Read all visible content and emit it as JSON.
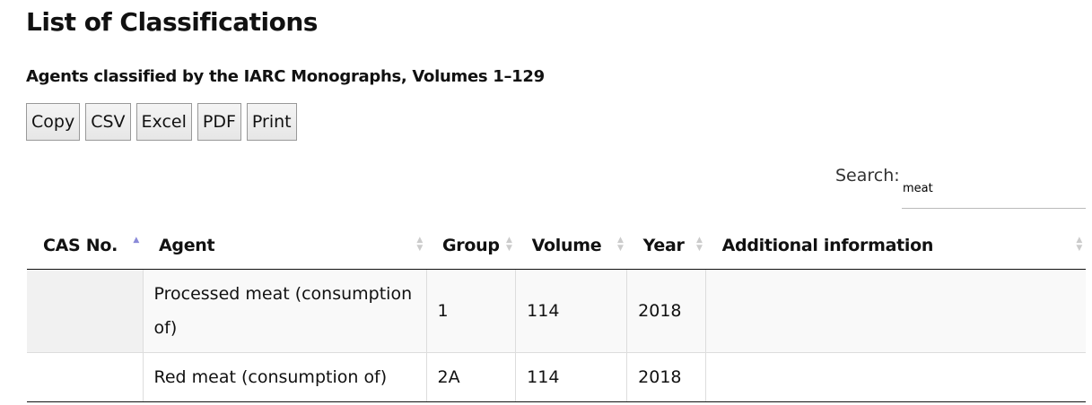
{
  "title": "List of Classifications",
  "subtitle": "Agents classified by the IARC Monographs, Volumes 1–129",
  "buttons": [
    "Copy",
    "CSV",
    "Excel",
    "PDF",
    "Print"
  ],
  "search": {
    "label": "Search:",
    "value": "meat"
  },
  "table": {
    "headers": [
      "CAS No.",
      "Agent",
      "Group",
      "Volume",
      "Year",
      "Additional information"
    ],
    "sorted_column": "CAS No.",
    "sort_direction": "ascending",
    "rows": [
      [
        "",
        "Processed meat (consumption of)",
        "1",
        "114",
        "2018",
        ""
      ],
      [
        "",
        "Red meat (consumption of)",
        "2A",
        "114",
        "2018",
        ""
      ]
    ]
  }
}
